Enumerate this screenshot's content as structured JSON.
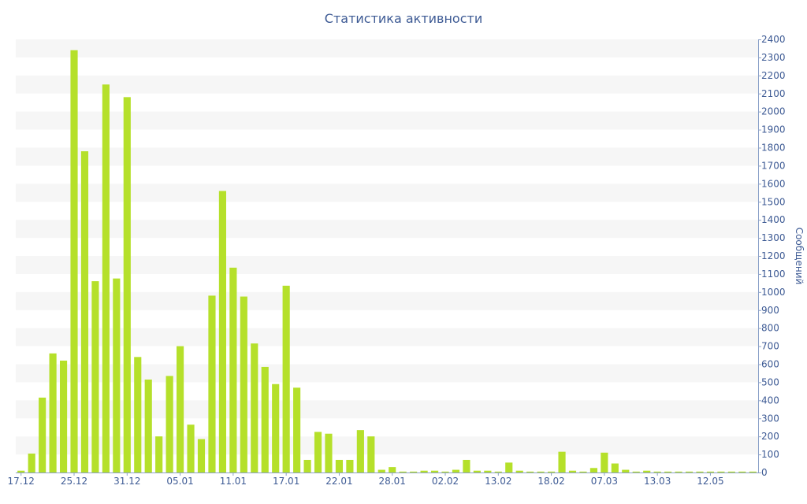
{
  "chart_data": {
    "type": "bar",
    "title": "Статистика активности",
    "ylabel": "Сообщений",
    "xlabel": "",
    "ylim": [
      0,
      2400
    ],
    "y_ticks": [
      0,
      100,
      200,
      300,
      400,
      500,
      600,
      700,
      800,
      900,
      1000,
      1100,
      1200,
      1300,
      1400,
      1500,
      1600,
      1700,
      1800,
      1900,
      2000,
      2100,
      2200,
      2300,
      2400
    ],
    "grid": "alternating horizontal bands",
    "y_axis_position": "right",
    "bar_color": "#b5e02a",
    "band_color": "#f6f6f6",
    "text_color": "#3d5a94",
    "x_tick_labels": [
      {
        "index": 0,
        "label": "17.12"
      },
      {
        "index": 5,
        "label": "25.12"
      },
      {
        "index": 10,
        "label": "31.12"
      },
      {
        "index": 15,
        "label": "05.01"
      },
      {
        "index": 20,
        "label": "11.01"
      },
      {
        "index": 25,
        "label": "17.01"
      },
      {
        "index": 30,
        "label": "22.01"
      },
      {
        "index": 35,
        "label": "28.01"
      },
      {
        "index": 40,
        "label": "02.02"
      },
      {
        "index": 45,
        "label": "13.02"
      },
      {
        "index": 50,
        "label": "18.02"
      },
      {
        "index": 55,
        "label": "07.03"
      },
      {
        "index": 60,
        "label": "13.03"
      },
      {
        "index": 65,
        "label": "12.05"
      }
    ],
    "values": [
      10,
      105,
      415,
      660,
      620,
      2340,
      1780,
      1060,
      2150,
      1075,
      2080,
      640,
      515,
      200,
      535,
      700,
      265,
      185,
      980,
      1560,
      1135,
      975,
      715,
      585,
      490,
      1035,
      470,
      70,
      225,
      215,
      70,
      70,
      235,
      200,
      15,
      30,
      5,
      5,
      10,
      10,
      5,
      15,
      70,
      10,
      10,
      5,
      55,
      10,
      5,
      5,
      5,
      115,
      10,
      5,
      25,
      110,
      50,
      15,
      5,
      10,
      5,
      5,
      5,
      5,
      5,
      5,
      5,
      5,
      5,
      5
    ]
  }
}
